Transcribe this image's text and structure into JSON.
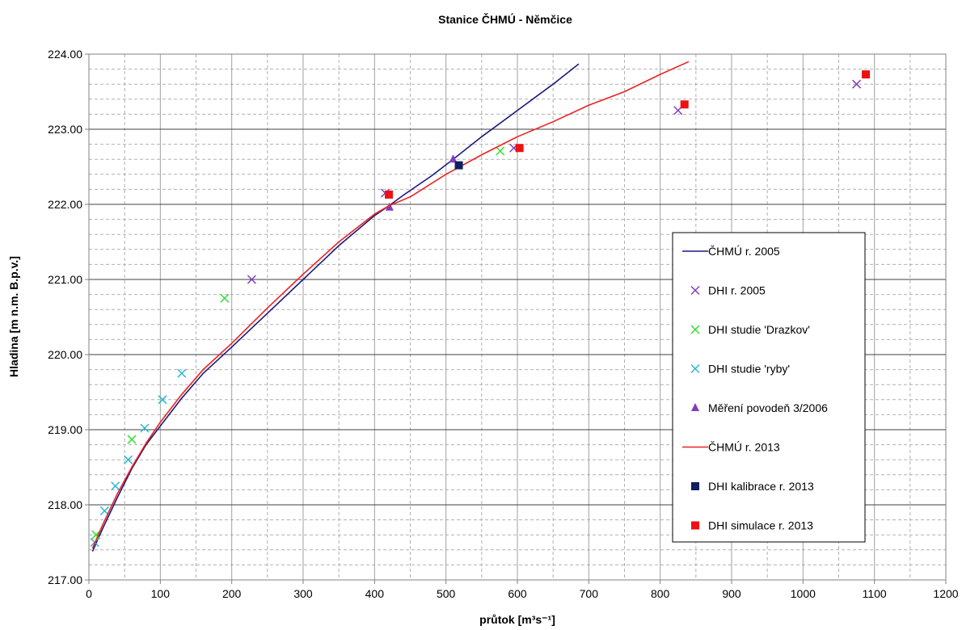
{
  "chart_data": {
    "type": "scatter",
    "title": "Stanice ČHMÚ  - Němčice",
    "xlabel": "průtok  [m³s⁻¹]",
    "ylabel": "Hladina  [m n.m. B.p.v.]",
    "xlim": [
      0,
      1200
    ],
    "ylim": [
      217.0,
      224.0
    ],
    "x_ticks": [
      "0",
      "100",
      "200",
      "300",
      "400",
      "500",
      "600",
      "700",
      "800",
      "900",
      "1000",
      "1100",
      "1200"
    ],
    "y_ticks": [
      "217.00",
      "218.00",
      "219.00",
      "220.00",
      "221.00",
      "222.00",
      "223.00",
      "224.00"
    ],
    "grid": "major solid, minor dashed",
    "legend_position": "right",
    "series": [
      {
        "name": "ČHMÚ  r. 2005",
        "kind": "line",
        "color": "#1a1a7e",
        "x": [
          5,
          20,
          40,
          60,
          80,
          100,
          130,
          160,
          200,
          250,
          300,
          350,
          400,
          420,
          440,
          480,
          510,
          550,
          600,
          650,
          686
        ],
        "y": [
          217.38,
          217.7,
          218.1,
          218.48,
          218.8,
          219.05,
          219.42,
          219.75,
          220.1,
          220.55,
          221.0,
          221.45,
          221.85,
          221.98,
          222.12,
          222.38,
          222.6,
          222.9,
          223.25,
          223.6,
          223.87
        ]
      },
      {
        "name": "DHI  r. 2005",
        "kind": "marker",
        "marker": "x",
        "color": "#7f3fbf",
        "x": [
          228,
          415,
          595,
          825,
          1075
        ],
        "y": [
          221.0,
          222.15,
          222.75,
          223.25,
          223.6
        ]
      },
      {
        "name": "DHI  studie 'Drazkov'",
        "kind": "marker",
        "marker": "x",
        "color": "#33dd33",
        "x": [
          10,
          60,
          190,
          576
        ],
        "y": [
          217.6,
          218.87,
          220.75,
          222.71
        ]
      },
      {
        "name": "DHI  studie 'ryby'",
        "kind": "marker",
        "marker": "x",
        "color": "#29b6d6",
        "x": [
          8,
          22,
          37,
          55,
          78,
          103,
          130
        ],
        "y": [
          217.5,
          217.92,
          218.25,
          218.6,
          219.02,
          219.4,
          219.75
        ]
      },
      {
        "name": "Měření  povodeň 3/2006",
        "kind": "marker",
        "marker": "triangle",
        "color": "#7f3fbf",
        "x": [
          421,
          510
        ],
        "y": [
          221.96,
          222.6
        ]
      },
      {
        "name": "ČHMÚ  r. 2013",
        "kind": "line",
        "color": "#ee2222",
        "x": [
          5,
          20,
          40,
          60,
          80,
          100,
          130,
          160,
          200,
          250,
          300,
          350,
          400,
          420,
          450,
          500,
          550,
          600,
          650,
          700,
          750,
          800,
          840
        ],
        "y": [
          217.42,
          217.75,
          218.15,
          218.5,
          218.82,
          219.1,
          219.47,
          219.8,
          220.15,
          220.62,
          221.07,
          221.5,
          221.87,
          221.98,
          222.1,
          222.4,
          222.66,
          222.9,
          223.1,
          223.32,
          223.5,
          223.73,
          223.9
        ]
      },
      {
        "name": "DHI kalibrace  r. 2013",
        "kind": "marker",
        "marker": "square",
        "color": "#0f1f5f",
        "x": [
          518
        ],
        "y": [
          222.52
        ]
      },
      {
        "name": "DHI simulace  r. 2013",
        "kind": "marker",
        "marker": "square",
        "color": "#ee1111",
        "x": [
          420,
          603,
          834,
          1088
        ],
        "y": [
          222.13,
          222.75,
          223.33,
          223.73
        ]
      }
    ]
  }
}
